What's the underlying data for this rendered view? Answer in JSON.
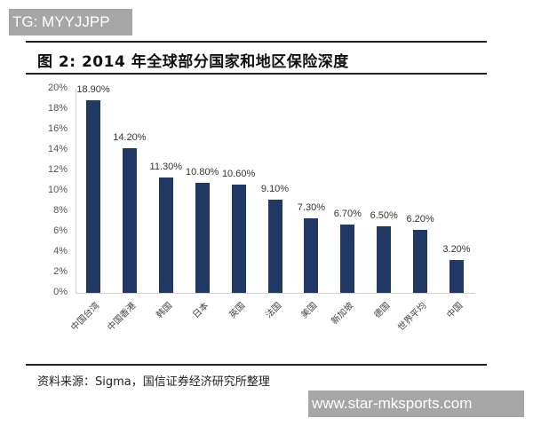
{
  "watermark_top": "TG: MYYJJPP",
  "watermark_bottom": "www.star-mksports.com",
  "figure_title": "图 2:  2014 年全球部分国家和地区保险深度",
  "source": "资料来源：Sigma，国信证券经济研究所整理",
  "colors": {
    "bar": "#1f3864",
    "axis": "#d0d0d0",
    "rule": "#222222"
  },
  "chart_data": {
    "type": "bar",
    "title": "2014 年全球部分国家和地区保险深度",
    "xlabel": "",
    "ylabel": "",
    "ylim": [
      0,
      20
    ],
    "yticks": [
      "0%",
      "2%",
      "4%",
      "6%",
      "8%",
      "10%",
      "12%",
      "14%",
      "16%",
      "18%",
      "20%"
    ],
    "categories": [
      "中国台湾",
      "中国香港",
      "韩国",
      "日本",
      "英国",
      "法国",
      "美国",
      "新加坡",
      "德国",
      "世界平均",
      "中国"
    ],
    "values": [
      18.9,
      14.2,
      11.3,
      10.8,
      10.6,
      9.1,
      7.3,
      6.7,
      6.5,
      6.2,
      3.2
    ],
    "value_labels": [
      "18.90%",
      "14.20%",
      "11.30%",
      "10.80%",
      "10.60%",
      "9.10%",
      "7.30%",
      "6.70%",
      "6.50%",
      "6.20%",
      "3.20%"
    ],
    "grid": false,
    "legend": null
  }
}
